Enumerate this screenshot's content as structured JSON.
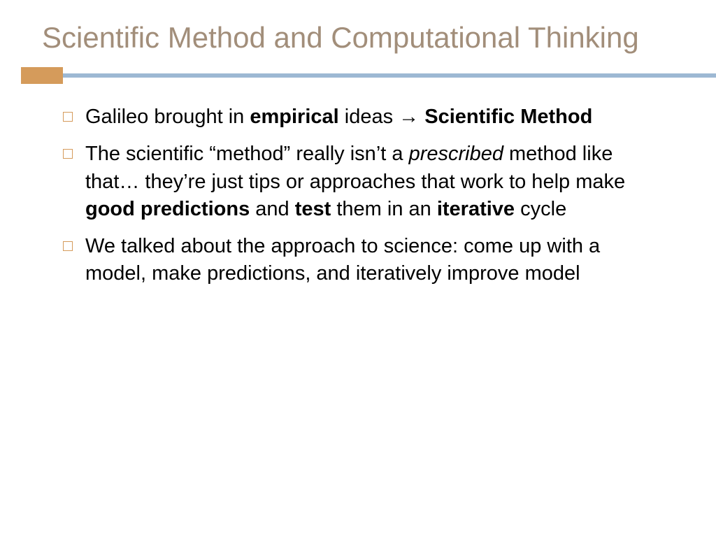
{
  "slide": {
    "title": "Scientific Method and Computational Thinking",
    "title_color": "#a28e7a",
    "title_fontsize": 42,
    "title_weight": 400,
    "divider": {
      "accent_block_color": "#d59b5b",
      "accent_block_width": 60,
      "accent_block_height": 24,
      "line_color": "#9db8d3",
      "line_height": 6
    },
    "bullets": [
      {
        "marker_color": "#d59b5b",
        "runs": [
          {
            "t": "Galileo brought in ",
            "b": false,
            "i": false
          },
          {
            "t": "empirical",
            "b": true,
            "i": false
          },
          {
            "t": " ideas ",
            "b": false,
            "i": false
          },
          {
            "t": "→",
            "b": false,
            "i": false,
            "arrow": true
          },
          {
            "t": " ",
            "b": false,
            "i": false
          },
          {
            "t": "Scientific Method",
            "b": true,
            "i": false
          }
        ]
      },
      {
        "marker_color": "#d59b5b",
        "runs": [
          {
            "t": "The scientific “method” really isn’t a ",
            "b": false,
            "i": false
          },
          {
            "t": "prescribed",
            "b": false,
            "i": true
          },
          {
            "t": " method like that… they’re just tips or approaches that work to help make ",
            "b": false,
            "i": false
          },
          {
            "t": "good predictions",
            "b": true,
            "i": false
          },
          {
            "t": " and ",
            "b": false,
            "i": false
          },
          {
            "t": "test",
            "b": true,
            "i": false
          },
          {
            "t": " them in an ",
            "b": false,
            "i": false
          },
          {
            "t": "iterative",
            "b": true,
            "i": false
          },
          {
            "t": " cycle",
            "b": false,
            "i": false
          }
        ]
      },
      {
        "marker_color": "#d59b5b",
        "runs": [
          {
            "t": "We talked about the approach to science: come up with a model, make predictions, and iteratively improve model",
            "b": false,
            "i": false
          }
        ]
      }
    ],
    "body_fontsize": 29,
    "body_color": "#000000",
    "background_color": "#ffffff"
  }
}
